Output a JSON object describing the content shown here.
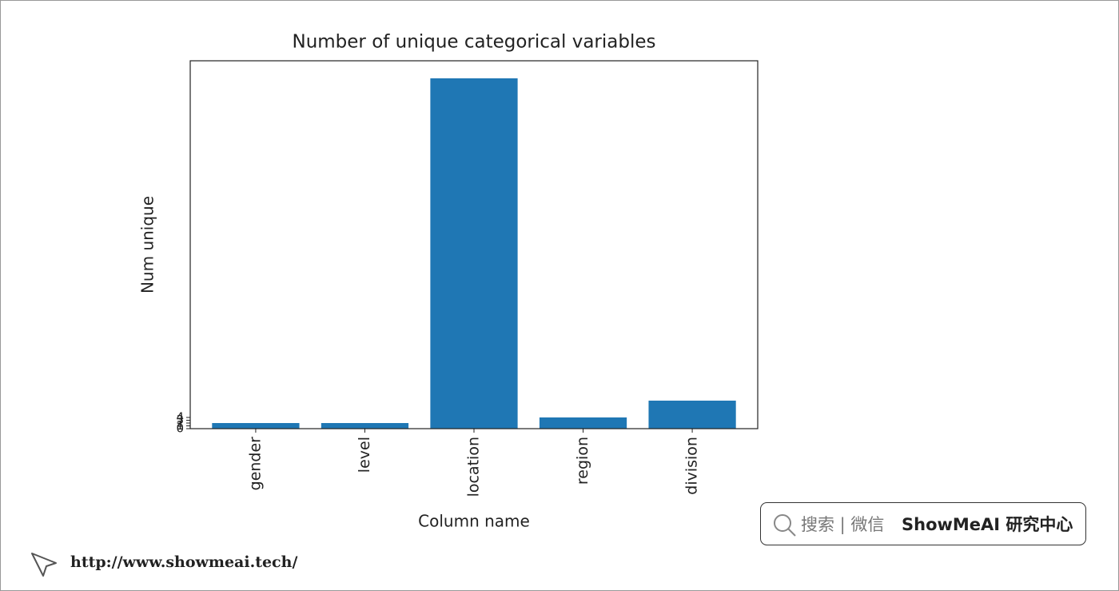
{
  "chart_data": {
    "type": "bar",
    "title": "Number of unique categorical variables",
    "x_label": "Column name",
    "y_label": "Num unique",
    "categories": [
      "gender",
      "level",
      "location",
      "region",
      "division"
    ],
    "values": [
      2,
      2,
      125,
      4,
      10
    ],
    "color": "#1f77b4",
    "ylim": [
      0,
      131.25
    ],
    "yticks": [
      0,
      1,
      2,
      3,
      4
    ]
  },
  "badge": {
    "search": "搜索 | 微信",
    "brand": "ShowMeAI 研究中心"
  },
  "footer": {
    "url": "http://www.showmeai.tech/"
  }
}
